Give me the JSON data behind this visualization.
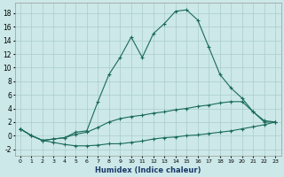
{
  "xlabel": "Humidex (Indice chaleur)",
  "bg_color": "#cce8e8",
  "grid_color": "#aacccc",
  "line_color": "#1a6b5a",
  "xlim": [
    -0.5,
    23.5
  ],
  "ylim": [
    -3,
    19.5
  ],
  "xticks": [
    0,
    1,
    2,
    3,
    4,
    5,
    6,
    7,
    8,
    9,
    10,
    11,
    12,
    13,
    14,
    15,
    16,
    17,
    18,
    19,
    20,
    21,
    22,
    23
  ],
  "yticks": [
    -2,
    0,
    2,
    4,
    6,
    8,
    10,
    12,
    14,
    16,
    18
  ],
  "series": [
    {
      "x": [
        0,
        1,
        2,
        3,
        4,
        5,
        6,
        7,
        8,
        9,
        10,
        11,
        12,
        13,
        14,
        15,
        16,
        17,
        18,
        19,
        20,
        21,
        22,
        23
      ],
      "y": [
        1,
        0,
        -0.7,
        -1.0,
        -1.3,
        -1.5,
        -1.5,
        -1.4,
        -1.2,
        -1.2,
        -1.0,
        -0.8,
        -0.5,
        -0.3,
        -0.2,
        0.0,
        0.1,
        0.3,
        0.5,
        0.7,
        1.0,
        1.3,
        1.6,
        2.0
      ]
    },
    {
      "x": [
        0,
        1,
        2,
        3,
        4,
        5,
        6,
        7,
        8,
        9,
        10,
        11,
        12,
        13,
        14,
        15,
        16,
        17,
        18,
        19,
        20,
        21,
        22,
        23
      ],
      "y": [
        1,
        0,
        -0.7,
        -0.5,
        -0.3,
        0.2,
        0.5,
        1.2,
        2.0,
        2.5,
        2.8,
        3.0,
        3.3,
        3.5,
        3.8,
        4.0,
        4.3,
        4.5,
        4.8,
        5.0,
        5.0,
        3.5,
        2.2,
        2.0
      ]
    },
    {
      "x": [
        0,
        1,
        2,
        3,
        4,
        5,
        6,
        7,
        8,
        9,
        10,
        11,
        12,
        13,
        14,
        15,
        16,
        17,
        18,
        19,
        20,
        21,
        22,
        23
      ],
      "y": [
        1,
        0,
        -0.7,
        -0.5,
        -0.3,
        0.5,
        0.7,
        5.0,
        9.0,
        11.5,
        14.5,
        11.5,
        15.0,
        16.5,
        18.3,
        18.5,
        17.0,
        13.0,
        9.0,
        7.0,
        5.5,
        3.5,
        2.0,
        2.0
      ]
    }
  ]
}
